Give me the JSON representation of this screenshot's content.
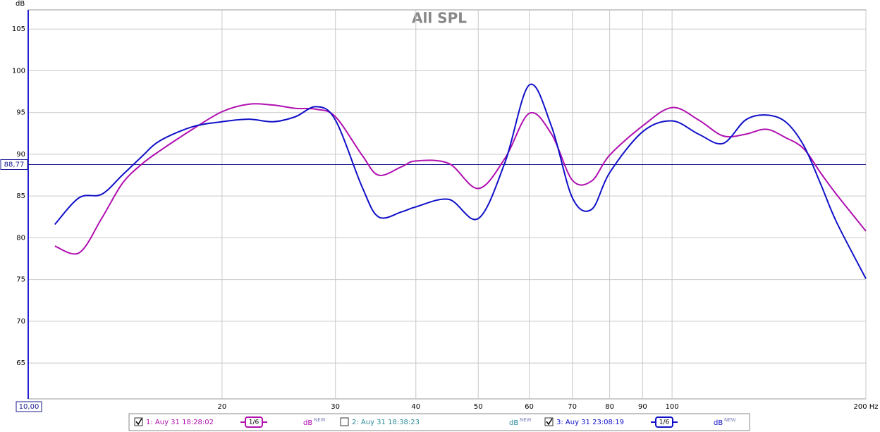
{
  "chart_data": {
    "type": "line",
    "title": "All SPL",
    "y_label": "dB",
    "log_x": true,
    "grid": true,
    "xlim": [
      10,
      200
    ],
    "ylim": [
      60.7,
      107.3
    ],
    "xticks": [
      20,
      30,
      40,
      50,
      60,
      70,
      80,
      90,
      100,
      {
        "value": 200,
        "label": "200 Hz"
      }
    ],
    "yticks": [
      65,
      70,
      75,
      80,
      85,
      90,
      95,
      100,
      105
    ],
    "x_start": {
      "value": 10,
      "label": "10,00"
    },
    "cursor_y": {
      "value": 88.77,
      "label": "88,77"
    },
    "x": [
      11,
      12,
      13,
      14,
      15,
      16,
      18,
      20,
      22,
      24,
      26,
      28,
      30,
      33,
      35,
      38,
      40,
      45,
      50,
      55,
      60,
      65,
      70,
      75,
      80,
      90,
      100,
      110,
      120,
      130,
      140,
      150,
      160,
      170,
      180,
      200
    ],
    "series": [
      {
        "name": "1: Auy 31 18:28:02",
        "color": "#b010b0",
        "checked": true,
        "smoothing": "1/6",
        "unit": "dB",
        "unit_badge": "NEW",
        "values": [
          79.0,
          78.2,
          82.3,
          86.5,
          88.8,
          90.4,
          93.0,
          95.1,
          96.0,
          95.9,
          95.5,
          95.4,
          94.5,
          89.9,
          87.5,
          88.5,
          89.2,
          88.9,
          85.9,
          89.5,
          94.9,
          92.4,
          86.9,
          86.8,
          89.9,
          93.4,
          95.6,
          94.1,
          92.2,
          92.4,
          93.0,
          92.0,
          90.7,
          87.8,
          85.2,
          80.8
        ]
      },
      {
        "name": "2: Auy 31 18:38:23",
        "color": "#2a8a9a",
        "checked": false,
        "unit": "dB",
        "unit_badge": "NEW",
        "values": [
          null,
          null,
          null,
          null,
          null,
          null,
          null,
          null,
          null,
          null,
          null,
          null,
          null,
          null,
          null,
          null,
          null,
          null,
          null,
          null,
          null,
          null,
          null,
          null,
          null,
          null,
          null,
          null,
          null,
          null,
          null,
          null,
          null,
          null,
          null,
          null
        ]
      },
      {
        "name": "3: Auy 31 23:08:19",
        "color": "#1010c8",
        "checked": true,
        "smoothing": "1/6",
        "unit": "dB",
        "unit_badge": "NEW",
        "values": [
          81.6,
          84.8,
          85.2,
          87.5,
          89.7,
          91.6,
          93.3,
          93.9,
          94.2,
          93.9,
          94.5,
          95.7,
          94.1,
          86.1,
          82.5,
          83.1,
          83.7,
          84.6,
          82.3,
          89.0,
          98.3,
          93.3,
          84.8,
          83.4,
          87.8,
          92.7,
          94.0,
          92.4,
          91.3,
          94.1,
          94.7,
          93.9,
          91.1,
          86.5,
          81.9,
          75.1
        ]
      }
    ]
  }
}
